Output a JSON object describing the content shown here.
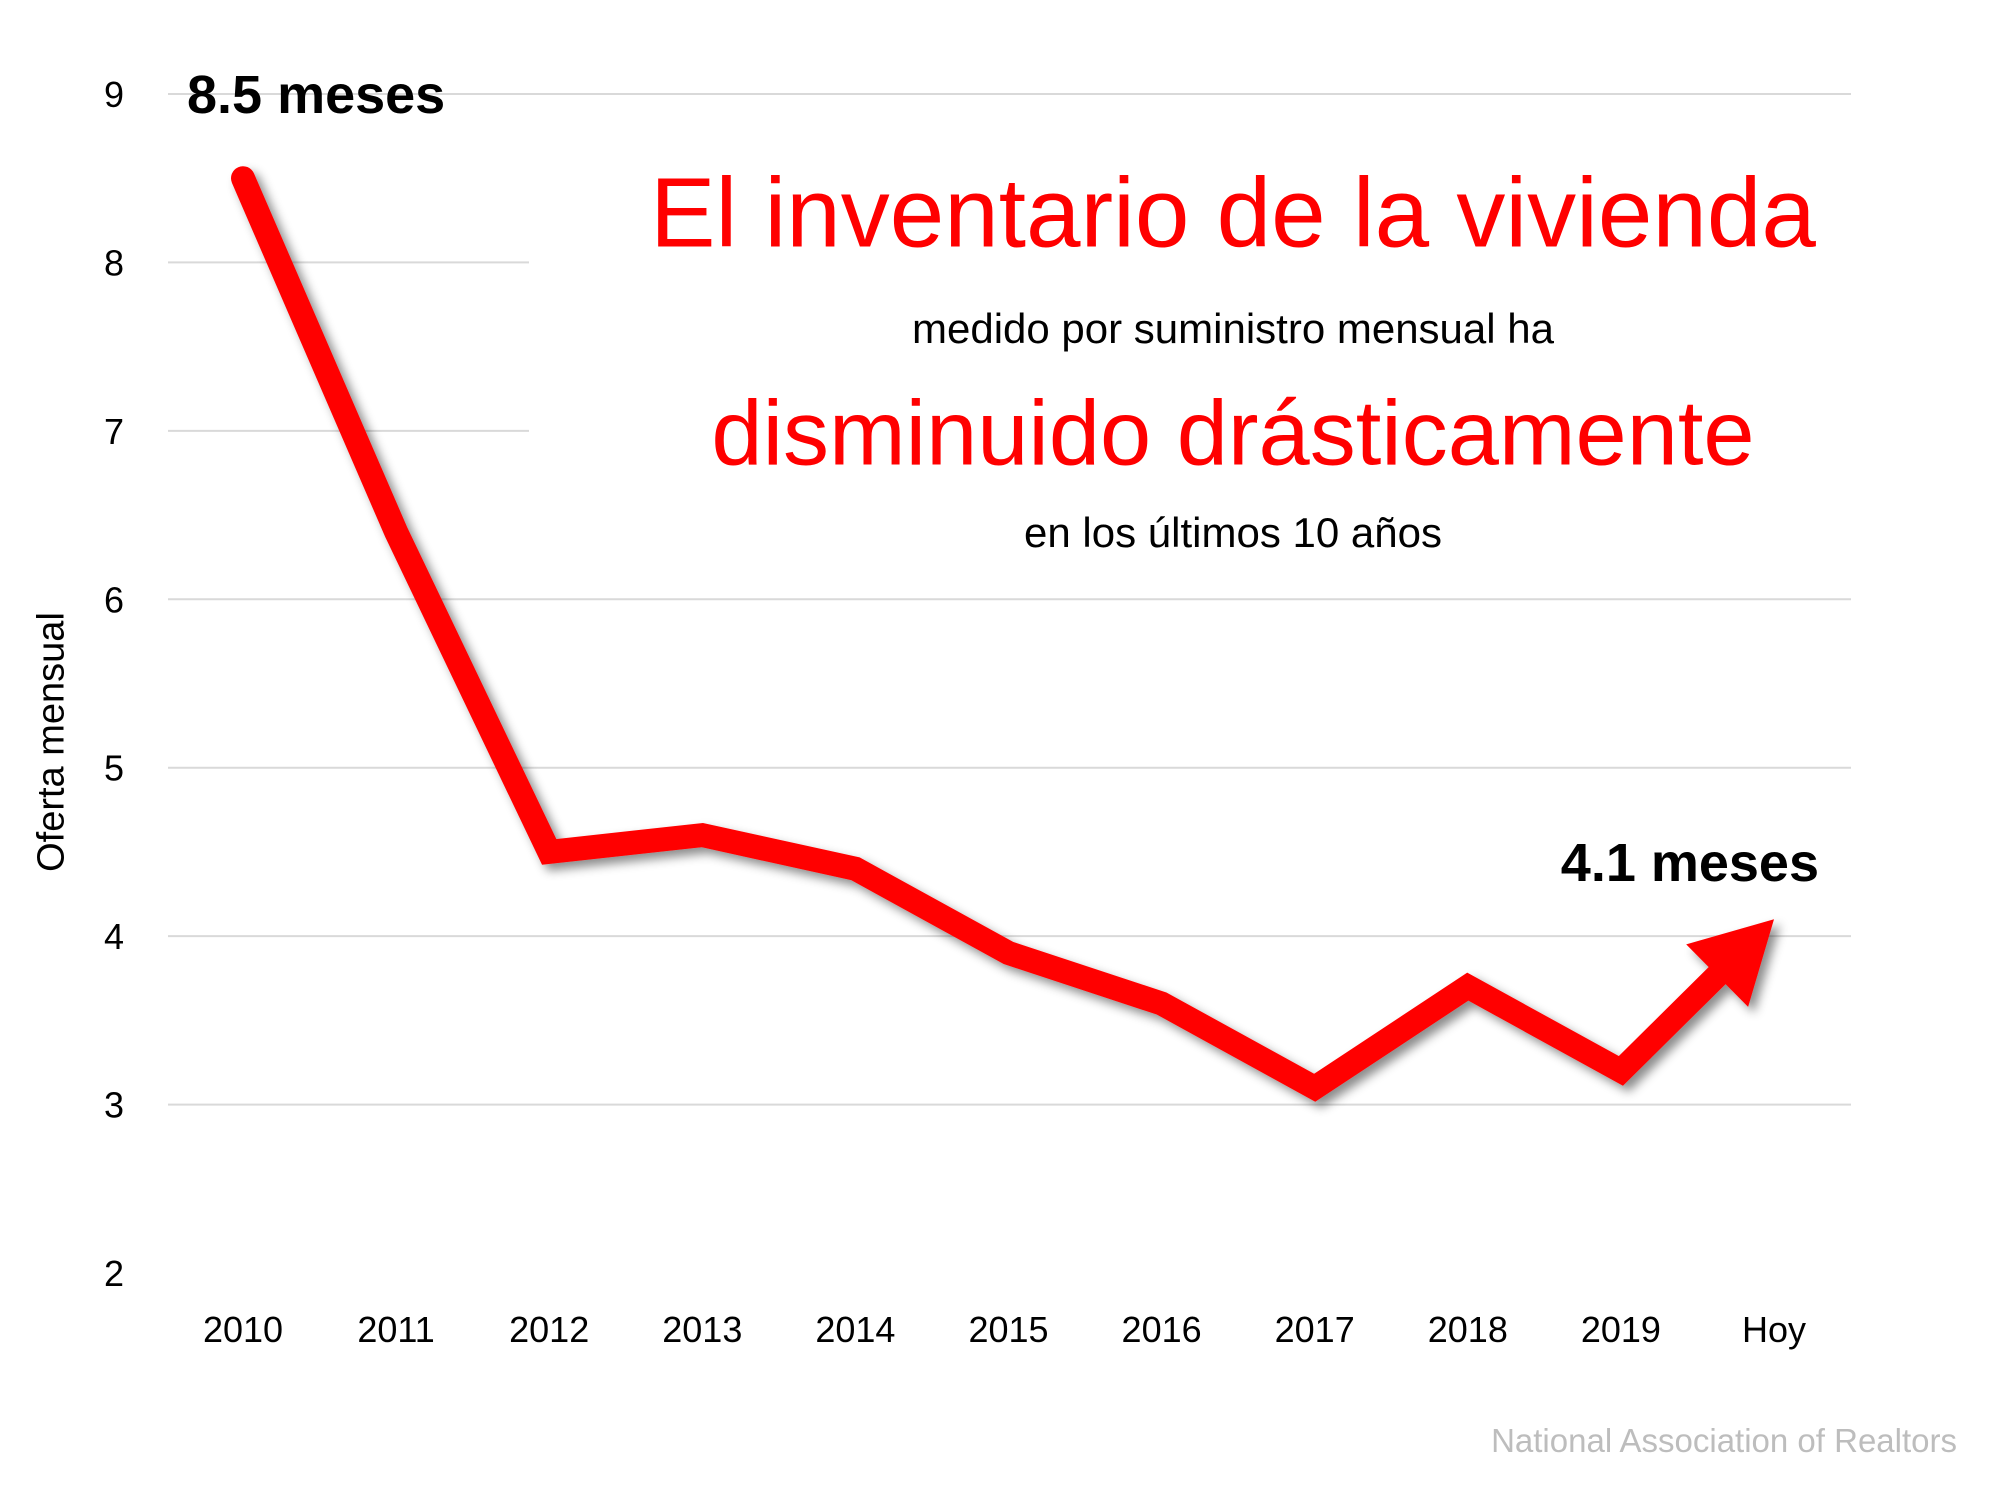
{
  "chart_data": {
    "type": "line",
    "title": "El inventario de la vivienda",
    "subtitle_lines": [
      "medido por suministro mensual ha",
      "disminuido drásticamente",
      "en los últimos 10 años"
    ],
    "ylabel": "Oferta mensual",
    "xlabel": "",
    "categories": [
      "2010",
      "2011",
      "2012",
      "2013",
      "2014",
      "2015",
      "2016",
      "2017",
      "2018",
      "2019",
      "Hoy"
    ],
    "values": [
      8.5,
      6.4,
      4.5,
      4.6,
      4.4,
      3.9,
      3.6,
      3.1,
      3.7,
      3.2,
      4.1
    ],
    "ylim": [
      2,
      9
    ],
    "yticks": [
      "2",
      "3",
      "4",
      "5",
      "6",
      "7",
      "8",
      "9"
    ],
    "grid": true,
    "annotations": {
      "start": "8.5 meses",
      "end": "4.1 meses"
    },
    "end_marker": "arrow",
    "line_color": "#ff0000",
    "source": "National Association of Realtors"
  }
}
